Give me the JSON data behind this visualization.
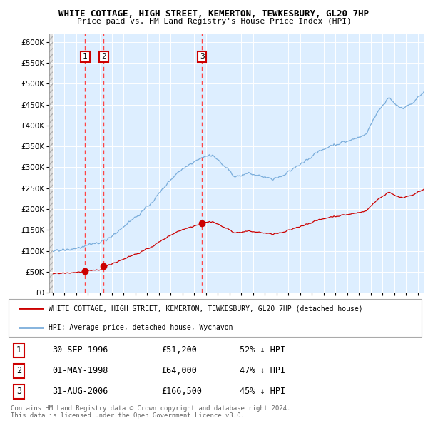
{
  "title1": "WHITE COTTAGE, HIGH STREET, KEMERTON, TEWKESBURY, GL20 7HP",
  "title2": "Price paid vs. HM Land Registry's House Price Index (HPI)",
  "legend_house": "WHITE COTTAGE, HIGH STREET, KEMERTON, TEWKESBURY, GL20 7HP (detached house)",
  "legend_hpi": "HPI: Average price, detached house, Wychavon",
  "footer1": "Contains HM Land Registry data © Crown copyright and database right 2024.",
  "footer2": "This data is licensed under the Open Government Licence v3.0.",
  "sales": [
    {
      "label": "1",
      "date": "30-SEP-1996",
      "price": 51200,
      "note": "52% ↓ HPI",
      "x": 1996.75
    },
    {
      "label": "2",
      "date": "01-MAY-1998",
      "price": 64000,
      "note": "47% ↓ HPI",
      "x": 1998.33
    },
    {
      "label": "3",
      "date": "31-AUG-2006",
      "price": 166500,
      "note": "45% ↓ HPI",
      "x": 2006.67
    }
  ],
  "house_color": "#cc0000",
  "hpi_color": "#7aaddb",
  "background_plot": "#ddeeff",
  "ylim": [
    0,
    620000
  ],
  "yticks": [
    0,
    50000,
    100000,
    150000,
    200000,
    250000,
    300000,
    350000,
    400000,
    450000,
    500000,
    550000,
    600000
  ],
  "xlim_start": 1993.7,
  "xlim_end": 2025.5,
  "xticks": [
    1994,
    1995,
    1996,
    1997,
    1998,
    1999,
    2000,
    2001,
    2002,
    2003,
    2004,
    2005,
    2006,
    2007,
    2008,
    2009,
    2010,
    2011,
    2012,
    2013,
    2014,
    2015,
    2016,
    2017,
    2018,
    2019,
    2020,
    2021,
    2022,
    2023,
    2024,
    2025
  ]
}
